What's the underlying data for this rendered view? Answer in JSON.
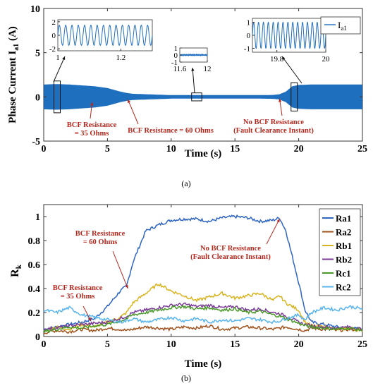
{
  "chart_data": [
    {
      "type": "line",
      "panel_label": "(a)",
      "xlabel": "Time (s)",
      "ylabel_main": "Phase Current I",
      "ylabel_sub": "a1",
      "ylabel_unit": " (A)",
      "xlim": [
        0,
        25
      ],
      "ylim": [
        -5,
        10
      ],
      "xticks": [
        "0",
        "5",
        "10",
        "15",
        "20",
        "25"
      ],
      "yticks": [
        "-5",
        "0",
        "5",
        "10"
      ],
      "legend": {
        "label_main": "I",
        "label_sub": "a1",
        "placement": "top-right",
        "color": "#1f6fbf"
      },
      "envelope": {
        "t": [
          0,
          1,
          2,
          3,
          4,
          5,
          5.5,
          6,
          6.5,
          7,
          8,
          9,
          10,
          11,
          12,
          13,
          14,
          15,
          16,
          17,
          18,
          18.5,
          19,
          19.5,
          20,
          21,
          22,
          23,
          24,
          25
        ],
        "amp": [
          1.4,
          1.45,
          1.4,
          1.3,
          1.2,
          1.0,
          0.8,
          0.6,
          0.45,
          0.35,
          0.3,
          0.25,
          0.2,
          0.2,
          0.2,
          0.2,
          0.2,
          0.2,
          0.2,
          0.2,
          0.22,
          0.3,
          0.6,
          1.2,
          1.35,
          1.4,
          1.4,
          1.4,
          1.4,
          1.4
        ]
      },
      "insets": [
        {
          "x_range": [
            1,
            1.3
          ],
          "xticks": [
            "1",
            "1.2"
          ],
          "yticks": [
            "-2",
            "0",
            "2"
          ],
          "y_range": [
            -2.3,
            2.3
          ],
          "amplitude": 1.5,
          "cycles": 15,
          "box_t": [
            0.8,
            1.3
          ],
          "box_y": [
            -1.8,
            1.8
          ]
        },
        {
          "x_range": [
            11.6,
            12
          ],
          "xticks": [
            "11.6",
            "12"
          ],
          "yticks": [
            "-1",
            "0",
            "1"
          ],
          "y_range": [
            -1,
            1
          ],
          "amplitude": 0.08,
          "cycles": 0,
          "box_t": [
            11.6,
            12.4
          ],
          "box_y": [
            -0.45,
            0.45
          ]
        },
        {
          "x_range": [
            19.7,
            20
          ],
          "xticks": [
            "19.8",
            "20"
          ],
          "yticks": [
            "-1",
            "0",
            "1"
          ],
          "y_range": [
            -1.3,
            1.3
          ],
          "amplitude": 1.0,
          "cycles": 15,
          "box_t": [
            19.4,
            19.9
          ],
          "box_y": [
            -1.6,
            1.6
          ]
        }
      ],
      "annotations": [
        {
          "lines": [
            "BCF Resistance",
            "= 35 Ohms"
          ],
          "target": [
            3.8,
            -0.6
          ]
        },
        {
          "lines": [
            "BCF Resistance = 60 Ohms"
          ],
          "target": [
            6.6,
            -0.3
          ]
        },
        {
          "lines": [
            "No BCF Resistance",
            "(Fault Clearance Instant)"
          ],
          "target": [
            18.5,
            -0.2
          ]
        }
      ]
    },
    {
      "type": "line",
      "panel_label": "(b)",
      "xlabel": "Time (s)",
      "ylabel_main": "R",
      "ylabel_sub": "k",
      "xlim": [
        0,
        25
      ],
      "ylim": [
        0,
        1.1
      ],
      "xticks": [
        "0",
        "5",
        "10",
        "15",
        "20",
        "25"
      ],
      "yticks": [
        "0",
        "0.2",
        "0.4",
        "0.6",
        "0.8",
        "1"
      ],
      "legend_placement": "top-right",
      "x": [
        0,
        1,
        2,
        3,
        4,
        5,
        6,
        6.5,
        7,
        8,
        9,
        10,
        11,
        12,
        13,
        14,
        15,
        16,
        17,
        18,
        18.5,
        19,
        20,
        20.5,
        21,
        22,
        23,
        24,
        25
      ],
      "series": [
        {
          "name": "Ra1",
          "color": "#2e64c2",
          "values": [
            0.06,
            0.08,
            0.1,
            0.12,
            0.15,
            0.25,
            0.38,
            0.42,
            0.62,
            0.88,
            0.93,
            0.97,
            0.98,
            0.98,
            0.96,
            0.99,
            1.0,
            0.99,
            0.96,
            0.97,
            0.99,
            0.88,
            0.45,
            0.22,
            0.12,
            0.1,
            0.08,
            0.07,
            0.06
          ]
        },
        {
          "name": "Ra2",
          "color": "#a0501a",
          "values": [
            0.03,
            0.05,
            0.04,
            0.06,
            0.05,
            0.07,
            0.06,
            0.05,
            0.06,
            0.08,
            0.07,
            0.06,
            0.08,
            0.07,
            0.09,
            0.06,
            0.07,
            0.08,
            0.07,
            0.06,
            0.07,
            0.08,
            0.06,
            0.05,
            0.07,
            0.06,
            0.05,
            0.06,
            0.05
          ]
        },
        {
          "name": "Rb1",
          "color": "#d8b420",
          "values": [
            0.05,
            0.08,
            0.06,
            0.1,
            0.08,
            0.12,
            0.16,
            0.2,
            0.28,
            0.36,
            0.44,
            0.38,
            0.34,
            0.3,
            0.33,
            0.36,
            0.32,
            0.34,
            0.36,
            0.3,
            0.34,
            0.28,
            0.22,
            0.12,
            0.09,
            0.08,
            0.06,
            0.07,
            0.05
          ]
        },
        {
          "name": "Rb2",
          "color": "#7b3a9a",
          "values": [
            0.06,
            0.07,
            0.09,
            0.1,
            0.11,
            0.12,
            0.15,
            0.17,
            0.2,
            0.22,
            0.24,
            0.26,
            0.27,
            0.25,
            0.26,
            0.24,
            0.25,
            0.22,
            0.23,
            0.2,
            0.19,
            0.17,
            0.12,
            0.1,
            0.09,
            0.08,
            0.07,
            0.08,
            0.06
          ]
        },
        {
          "name": "Rc1",
          "color": "#4a9a2a",
          "values": [
            0.04,
            0.06,
            0.08,
            0.07,
            0.09,
            0.1,
            0.13,
            0.15,
            0.18,
            0.2,
            0.22,
            0.24,
            0.25,
            0.23,
            0.24,
            0.22,
            0.23,
            0.2,
            0.21,
            0.18,
            0.17,
            0.15,
            0.11,
            0.09,
            0.08,
            0.07,
            0.06,
            0.07,
            0.05
          ]
        },
        {
          "name": "Rc2",
          "color": "#58b4ee",
          "values": [
            0.22,
            0.2,
            0.24,
            0.18,
            0.16,
            0.14,
            0.12,
            0.13,
            0.15,
            0.12,
            0.14,
            0.16,
            0.13,
            0.15,
            0.12,
            0.14,
            0.13,
            0.15,
            0.14,
            0.12,
            0.13,
            0.15,
            0.18,
            0.14,
            0.2,
            0.24,
            0.22,
            0.25,
            0.23
          ]
        }
      ],
      "annotations": [
        {
          "lines": [
            "BCF Resistance",
            "= 60 Ohms"
          ],
          "target": [
            6.6,
            0.4
          ]
        },
        {
          "lines": [
            "No BCF Resistance",
            "(Fault Clearance Instant)"
          ],
          "target": [
            18.5,
            0.98
          ]
        },
        {
          "lines": [
            "BCF Resistance",
            "= 35 Ohms"
          ],
          "target": [
            3.7,
            0.13
          ]
        }
      ]
    }
  ]
}
